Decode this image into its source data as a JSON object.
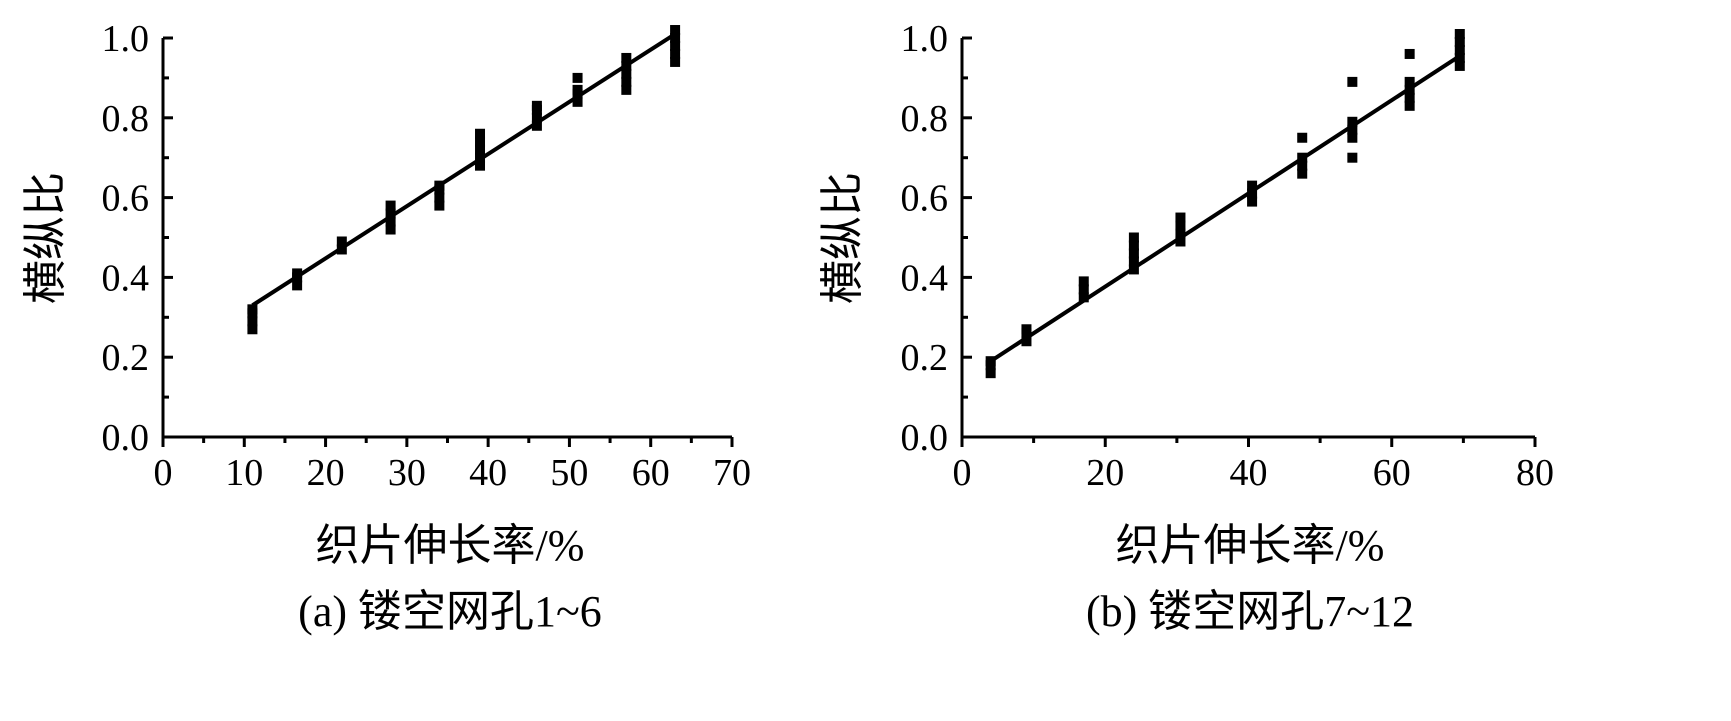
{
  "chart_data": [
    {
      "type": "scatter",
      "caption": "(a) 镂空网孔1~6",
      "xlabel": "织片伸长率/%",
      "ylabel": "横纵比",
      "xlim": [
        0,
        70
      ],
      "ylim": [
        0,
        1.0
      ],
      "xticks": [
        "0",
        "10",
        "20",
        "30",
        "40",
        "50",
        "60",
        "70"
      ],
      "yticks": [
        "0.0",
        "0.2",
        "0.4",
        "0.6",
        "0.8",
        "1.0"
      ],
      "grid": false,
      "points": [
        {
          "x": 11,
          "y": [
            0.27,
            0.29,
            0.31,
            0.32
          ]
        },
        {
          "x": 16.5,
          "y": [
            0.38,
            0.4,
            0.41
          ]
        },
        {
          "x": 22,
          "y": [
            0.47,
            0.49
          ]
        },
        {
          "x": 28,
          "y": [
            0.52,
            0.54,
            0.56,
            0.58
          ]
        },
        {
          "x": 34,
          "y": [
            0.58,
            0.6,
            0.62,
            0.63
          ]
        },
        {
          "x": 39,
          "y": [
            0.68,
            0.7,
            0.72,
            0.74,
            0.76
          ]
        },
        {
          "x": 46,
          "y": [
            0.78,
            0.8,
            0.82,
            0.83
          ]
        },
        {
          "x": 51,
          "y": [
            0.84,
            0.86,
            0.87,
            0.9
          ]
        },
        {
          "x": 57,
          "y": [
            0.87,
            0.89,
            0.91,
            0.93,
            0.95
          ]
        },
        {
          "x": 63,
          "y": [
            0.94,
            0.96,
            0.98,
            1.0,
            1.02
          ]
        }
      ],
      "fit_line": {
        "x": [
          11,
          63
        ],
        "y": [
          0.33,
          1.01
        ]
      }
    },
    {
      "type": "scatter",
      "caption": "(b) 镂空网孔7~12",
      "xlabel": "织片伸长率/%",
      "ylabel": "横纵比",
      "xlim": [
        0,
        80
      ],
      "ylim": [
        0,
        1.0
      ],
      "xticks": [
        "0",
        "20",
        "40",
        "60",
        "80"
      ],
      "yticks": [
        "0.0",
        "0.2",
        "0.4",
        "0.6",
        "0.8",
        "1.0"
      ],
      "grid": false,
      "points": [
        {
          "x": 4,
          "y": [
            0.16,
            0.18,
            0.19
          ]
        },
        {
          "x": 9,
          "y": [
            0.24,
            0.26,
            0.27
          ]
        },
        {
          "x": 17,
          "y": [
            0.35,
            0.37,
            0.39
          ]
        },
        {
          "x": 24,
          "y": [
            0.42,
            0.44,
            0.46,
            0.48,
            0.5
          ]
        },
        {
          "x": 30.5,
          "y": [
            0.49,
            0.51,
            0.53,
            0.55
          ]
        },
        {
          "x": 40.5,
          "y": [
            0.59,
            0.61,
            0.63
          ]
        },
        {
          "x": 47.5,
          "y": [
            0.66,
            0.68,
            0.7,
            0.75
          ]
        },
        {
          "x": 54.5,
          "y": [
            0.7,
            0.75,
            0.77,
            0.79,
            0.89
          ]
        },
        {
          "x": 62.5,
          "y": [
            0.83,
            0.85,
            0.87,
            0.89,
            0.96
          ]
        },
        {
          "x": 69.5,
          "y": [
            0.93,
            0.95,
            0.97,
            0.99,
            1.01
          ]
        }
      ],
      "fit_line": {
        "x": [
          4,
          69.5
        ],
        "y": [
          0.19,
          0.955
        ]
      }
    }
  ]
}
